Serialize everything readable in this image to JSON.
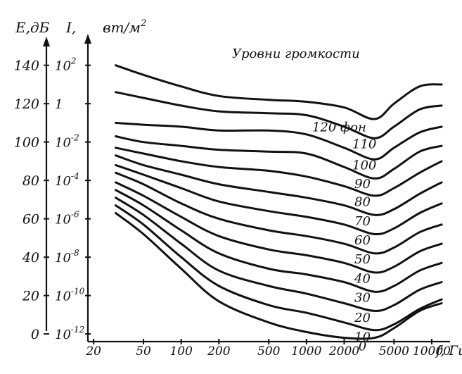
{
  "chart_data": {
    "type": "line",
    "title": "Уровни громкости",
    "y_axis_left": {
      "label": "E,дБ",
      "ticks": [
        "140",
        "120",
        "100",
        "80",
        "60",
        "40",
        "20",
        "0"
      ],
      "values": [
        140,
        120,
        100,
        80,
        60,
        40,
        20,
        0
      ],
      "ylim": [
        -4,
        152
      ]
    },
    "y_axis_right": {
      "label": "I,",
      "unit": "вт/м",
      "unit_sup": "2",
      "ticks": [
        {
          "base": "10",
          "exp": "2"
        },
        {
          "base": "1",
          "exp": ""
        },
        {
          "base": "10",
          "exp": "-2"
        },
        {
          "base": "10",
          "exp": "-4"
        },
        {
          "base": "10",
          "exp": "-6"
        },
        {
          "base": "10",
          "exp": "-8"
        },
        {
          "base": "10",
          "exp": "-10"
        },
        {
          "base": "10",
          "exp": "-12"
        }
      ]
    },
    "x_axis": {
      "label": "f, Гц",
      "scale": "log",
      "ticks": [
        "20",
        "50",
        "100",
        "200",
        "500",
        "1000",
        "2000",
        "5000",
        "10000"
      ],
      "values": [
        20,
        50,
        100,
        200,
        500,
        1000,
        2000,
        5000,
        10000
      ],
      "xlim": [
        18,
        14000
      ]
    },
    "x": [
      30,
      50,
      100,
      200,
      500,
      1000,
      2000,
      3500,
      5000,
      8000,
      12000
    ],
    "series": [
      {
        "name": "120 фон",
        "label_freq": 3000,
        "label_offset": 22,
        "values": [
          140,
          135,
          129,
          124,
          122,
          121,
          118,
          112,
          120,
          129,
          130
        ]
      },
      {
        "name": "110",
        "label_freq": 2900,
        "label_offset": 20,
        "values": [
          126,
          123,
          119,
          116,
          115,
          114,
          108,
          102,
          108,
          117,
          119
        ]
      },
      {
        "name": "100",
        "label_freq": 2900,
        "label_offset": 20,
        "values": [
          110,
          109,
          108,
          106,
          106,
          104,
          97,
          91,
          97,
          105,
          108
        ]
      },
      {
        "name": "90",
        "label_freq": 2800,
        "label_offset": 20,
        "values": [
          103,
          100,
          98,
          96,
          95,
          94,
          87,
          81,
          86,
          95,
          98
        ]
      },
      {
        "name": "80",
        "label_freq": 2800,
        "label_offset": 20,
        "values": [
          97,
          94,
          90,
          87,
          85,
          82,
          77,
          72,
          76,
          84,
          90
        ]
      },
      {
        "name": "70",
        "label_freq": 2800,
        "label_offset": 20,
        "values": [
          93,
          88,
          83,
          78,
          74,
          71,
          67,
          62,
          65,
          73,
          79
        ]
      },
      {
        "name": "60",
        "label_freq": 2800,
        "label_offset": 20,
        "values": [
          88,
          83,
          76,
          69,
          64,
          61,
          57,
          52,
          55,
          63,
          68
        ]
      },
      {
        "name": "50",
        "label_freq": 2800,
        "label_offset": 20,
        "values": [
          84,
          78,
          68,
          60,
          54,
          51,
          47,
          42,
          45,
          53,
          57
        ]
      },
      {
        "name": "40",
        "label_freq": 2800,
        "label_offset": 20,
        "values": [
          79,
          72,
          61,
          51,
          44,
          41,
          37,
          32,
          35,
          43,
          47
        ]
      },
      {
        "name": "30",
        "label_freq": 2800,
        "label_offset": 20,
        "values": [
          75,
          67,
          54,
          42,
          34,
          31,
          27,
          22,
          25,
          33,
          37
        ]
      },
      {
        "name": "20",
        "label_freq": 2800,
        "label_offset": 20,
        "values": [
          71,
          62,
          47,
          33,
          25,
          21,
          16,
          12,
          15,
          23,
          27
        ]
      },
      {
        "name": "10",
        "label_freq": 2800,
        "label_offset": 20,
        "values": [
          67,
          57,
          40,
          25,
          15,
          11,
          6,
          2,
          5,
          13,
          18
        ]
      },
      {
        "name": "0",
        "label_freq": 2800,
        "label_offset": 18,
        "values": [
          63,
          52,
          34,
          17,
          6,
          1,
          -2,
          -2,
          3,
          12,
          16
        ]
      }
    ],
    "grid": false,
    "legend": "none"
  }
}
